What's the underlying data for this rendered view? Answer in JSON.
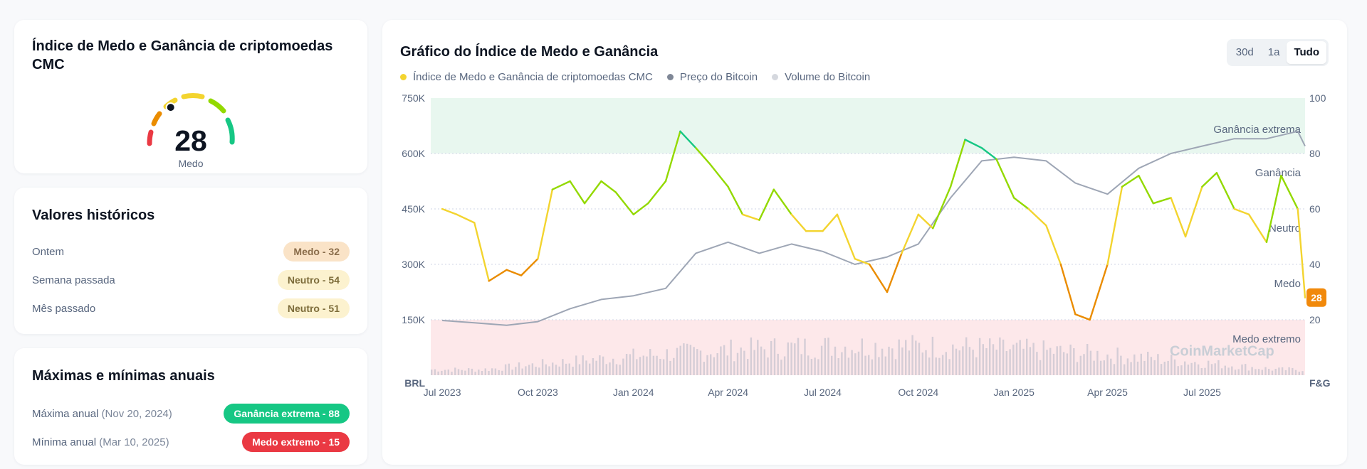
{
  "index_card": {
    "title": "Índice de Medo e Ganância de criptomoedas CMC",
    "value": "28",
    "label": "Medo",
    "fraction": 0.28
  },
  "history": {
    "title": "Valores históricos",
    "items": [
      {
        "label": "Ontem",
        "badge": "Medo - 32",
        "bg": "#fae3c7",
        "fg": "#8a6d4b"
      },
      {
        "label": "Semana passada",
        "badge": "Neutro - 54",
        "bg": "#fcf2cf",
        "fg": "#7d6c3a"
      },
      {
        "label": "Mês passado",
        "badge": "Neutro - 51",
        "bg": "#fcf2cf",
        "fg": "#7d6c3a"
      }
    ]
  },
  "yearly": {
    "title": "Máximas e mínimas anuais",
    "items": [
      {
        "label": "Máxima anual",
        "date": "(Nov 20, 2024)",
        "badge": "Ganância extrema - 88",
        "bg": "#16c784",
        "fg": "#ffffff"
      },
      {
        "label": "Mínima anual",
        "date": "(Mar 10, 2025)",
        "badge": "Medo extremo - 15",
        "bg": "#ea3943",
        "fg": "#ffffff"
      }
    ]
  },
  "chart_card": {
    "title": "Gráfico do Índice de Medo e Ganância",
    "ranges": [
      "30d",
      "1a",
      "Tudo"
    ],
    "active_range": "Tudo",
    "legend": [
      {
        "name": "Índice de Medo e Ganância de criptomoedas CMC",
        "color": "#f3d42f"
      },
      {
        "name": "Preço do Bitcoin",
        "color": "#7f8796"
      },
      {
        "name": "Volume do Bitcoin",
        "color": "#d5d8de"
      }
    ],
    "watermark": "CoinMarketCap"
  },
  "chart_data": {
    "type": "line",
    "x_ticks": [
      "Jul 2023",
      "Oct 2023",
      "Jan 2024",
      "Apr 2024",
      "Jul 2024",
      "Oct 2024",
      "Jan 2025",
      "Apr 2025",
      "Jul 2025"
    ],
    "left_axis": {
      "unit": "BRL",
      "ticks": [
        "750K",
        "600K",
        "450K",
        "300K",
        "150K"
      ],
      "ylim": [
        0,
        750000
      ]
    },
    "right_axis": {
      "unit": "F&G",
      "ticks": [
        "100",
        "80",
        "60",
        "40",
        "20"
      ],
      "ylim": [
        0,
        100
      ]
    },
    "zones": [
      {
        "name": "Ganância extrema",
        "from": 80,
        "to": 100,
        "color": "#e8f7ef"
      },
      {
        "name": "Ganância",
        "from": 60,
        "to": 80,
        "color": ""
      },
      {
        "name": "Neutro",
        "from": 40,
        "to": 60,
        "color": ""
      },
      {
        "name": "Medo",
        "from": 20,
        "to": 40,
        "color": ""
      },
      {
        "name": "Medo extremo",
        "from": 0,
        "to": 20,
        "color": "#fde8ea"
      }
    ],
    "current_value": "28",
    "current_color": "#f1890b",
    "series": [
      {
        "name": "Índice de Medo e Ganância de criptomoedas CMC",
        "axis": "right",
        "x": [
          "2023-07-01",
          "2023-07-15",
          "2023-08-01",
          "2023-08-15",
          "2023-09-01",
          "2023-09-15",
          "2023-10-01",
          "2023-10-15",
          "2023-11-01",
          "2023-11-15",
          "2023-12-01",
          "2023-12-15",
          "2024-01-01",
          "2024-01-15",
          "2024-02-01",
          "2024-02-15",
          "2024-03-01",
          "2024-03-15",
          "2024-04-01",
          "2024-04-15",
          "2024-05-01",
          "2024-05-15",
          "2024-06-01",
          "2024-06-15",
          "2024-07-01",
          "2024-07-15",
          "2024-08-01",
          "2024-08-15",
          "2024-09-01",
          "2024-09-15",
          "2024-10-01",
          "2024-10-15",
          "2024-11-01",
          "2024-11-15",
          "2024-12-01",
          "2024-12-15",
          "2025-01-01",
          "2025-01-15",
          "2025-02-01",
          "2025-02-15",
          "2025-03-01",
          "2025-03-15",
          "2025-04-01",
          "2025-04-15",
          "2025-05-01",
          "2025-05-15",
          "2025-06-01",
          "2025-06-15",
          "2025-07-01",
          "2025-07-15",
          "2025-08-01",
          "2025-08-15",
          "2025-09-01",
          "2025-09-15",
          "2025-10-01",
          "2025-10-08"
        ],
        "values": [
          60,
          58,
          55,
          34,
          38,
          36,
          42,
          67,
          70,
          62,
          70,
          66,
          58,
          62,
          70,
          88,
          82,
          76,
          68,
          58,
          56,
          67,
          58,
          52,
          52,
          58,
          42,
          40,
          30,
          44,
          58,
          53,
          68,
          85,
          82,
          78,
          64,
          60,
          54,
          40,
          22,
          20,
          40,
          68,
          72,
          62,
          64,
          50,
          68,
          73,
          60,
          58,
          48,
          72,
          60,
          28
        ]
      },
      {
        "name": "Preço do Bitcoin",
        "axis": "left",
        "x": [
          "2023-07-01",
          "2023-08-01",
          "2023-09-01",
          "2023-10-01",
          "2023-11-01",
          "2023-12-01",
          "2024-01-01",
          "2024-02-01",
          "2024-03-01",
          "2024-04-01",
          "2024-05-01",
          "2024-06-01",
          "2024-07-01",
          "2024-08-01",
          "2024-09-01",
          "2024-10-01",
          "2024-11-01",
          "2024-12-01",
          "2025-01-01",
          "2025-02-01",
          "2025-03-01",
          "2025-04-01",
          "2025-05-01",
          "2025-06-01",
          "2025-07-01",
          "2025-08-01",
          "2025-09-01",
          "2025-10-01",
          "2025-10-08"
        ],
        "values": [
          148000,
          142000,
          135000,
          145000,
          180000,
          205000,
          215000,
          235000,
          330000,
          360000,
          330000,
          355000,
          335000,
          300000,
          320000,
          355000,
          480000,
          580000,
          590000,
          580000,
          520000,
          490000,
          560000,
          600000,
          620000,
          640000,
          640000,
          660000,
          620000
        ]
      },
      {
        "name": "Volume do Bitcoin",
        "axis": "volume"
      }
    ]
  }
}
